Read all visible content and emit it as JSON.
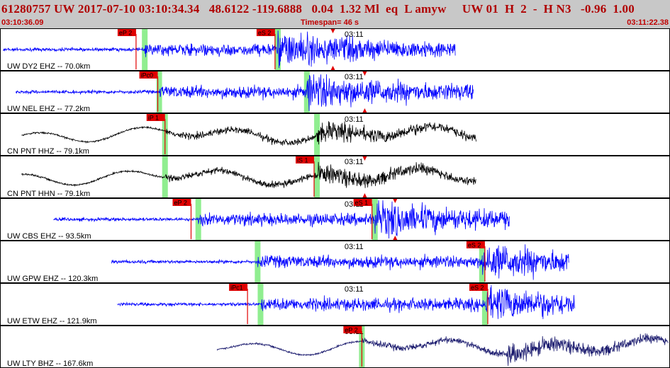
{
  "header": {
    "title": "61280757 UW 2017-07-10 03:10:34.34   48.6122 -119.6888   0.04  1.32 Ml  eq  L amyw     UW 01  H  2  -  H N3   -0.96  1.00",
    "start_time": "03:10:36.09",
    "end_time": "03:11:22.38",
    "timespan": "Timespan=  46 s"
  },
  "colors": {
    "blue_trace": "#0000ff",
    "black_trace": "#000000",
    "navy_trace": "#1a1a6e",
    "pick": "#e00000",
    "window": "#90ee90"
  },
  "chart_data": {
    "type": "line",
    "title": "",
    "xlabel": "",
    "ylabel": "",
    "time_start": "03:10:36.09",
    "time_end": "03:11:22.38",
    "time_mark_label": "03:11",
    "time_mark_sec": 23.9,
    "span_sec": 46.29,
    "channels": [
      {
        "label": "UW DY2 EHZ -- 70.0km",
        "color": "blue",
        "data_start_sec": 0.2,
        "data_end_sec": 31.5,
        "picks": [
          {
            "label": "eP 2",
            "sec": 9.4
          },
          {
            "label": "eS 2",
            "sec": 19.0
          }
        ],
        "windows": [
          {
            "sec": 10.0
          },
          {
            "sec": 19.2
          }
        ],
        "arrivals": [
          {
            "sec": 23.0
          }
        ]
      },
      {
        "label": "UW NEL EHZ -- 77.2km",
        "color": "blue",
        "data_start_sec": 1.1,
        "data_end_sec": 32.7,
        "picks": [
          {
            "label": "iPc0",
            "sec": 10.9
          }
        ],
        "windows": [
          {
            "sec": 11.0
          },
          {
            "sec": 21.2
          }
        ],
        "arrivals": [
          {
            "sec": 25.2
          }
        ]
      },
      {
        "label": "CN PNT HHZ -- 79.1km",
        "color": "black",
        "data_start_sec": 1.5,
        "data_end_sec": 32.9,
        "picks": [
          {
            "label": "iP 1",
            "sec": 11.4
          }
        ],
        "windows": [
          {
            "sec": 11.4
          },
          {
            "sec": 21.9
          }
        ],
        "arrivals": []
      },
      {
        "label": "CN PNT HHN -- 79.1km",
        "color": "black",
        "data_start_sec": 1.5,
        "data_end_sec": 32.9,
        "picks": [
          {
            "label": "iS 1",
            "sec": 21.7
          }
        ],
        "windows": [
          {
            "sec": 11.4
          },
          {
            "sec": 21.9
          }
        ],
        "arrivals": [
          {
            "sec": 25.2
          }
        ]
      },
      {
        "label": "UW CBS EHZ -- 93.5km",
        "color": "blue",
        "data_start_sec": 3.7,
        "data_end_sec": 35.2,
        "picks": [
          {
            "label": "eP 2",
            "sec": 13.2
          },
          {
            "label": "eS 1",
            "sec": 25.7
          }
        ],
        "windows": [
          {
            "sec": 13.7
          },
          {
            "sec": 25.9
          }
        ],
        "arrivals": [
          {
            "sec": 27.3
          }
        ]
      },
      {
        "label": "UW GPW EHZ -- 120.3km",
        "color": "blue",
        "data_start_sec": 7.7,
        "data_end_sec": 39.3,
        "picks": [
          {
            "label": "eS 2",
            "sec": 33.5
          }
        ],
        "windows": [
          {
            "sec": 17.8
          },
          {
            "sec": 33.3
          }
        ],
        "arrivals": []
      },
      {
        "label": "UW ETW EHZ -- 121.9km",
        "color": "blue",
        "data_start_sec": 8.1,
        "data_end_sec": 39.7,
        "picks": [
          {
            "label": "iPc1",
            "sec": 17.1
          },
          {
            "label": "eS 2",
            "sec": 33.7
          }
        ],
        "windows": [
          {
            "sec": 18.0
          },
          {
            "sec": 33.5
          }
        ],
        "arrivals": []
      },
      {
        "label": "UW LTY BHZ -- 167.6km",
        "color": "navy",
        "data_start_sec": 15.0,
        "data_end_sec": 46.2,
        "picks": [
          {
            "label": "eP 2",
            "sec": 25.0
          }
        ],
        "windows": [
          {
            "sec": 25.0
          }
        ],
        "arrivals": []
      }
    ]
  }
}
